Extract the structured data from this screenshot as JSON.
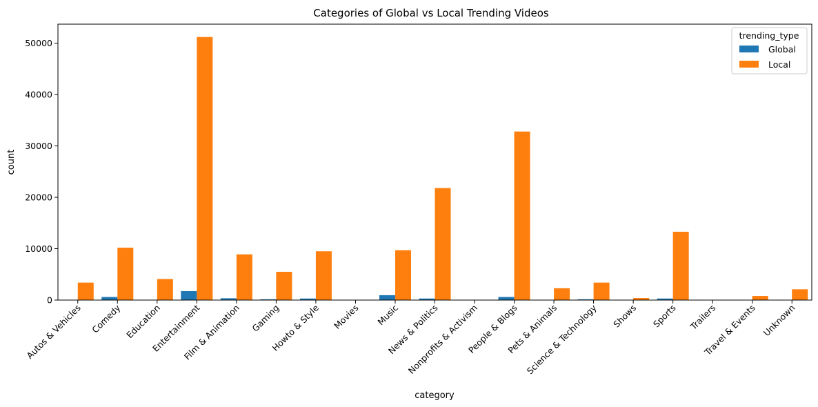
{
  "chart_data": {
    "type": "bar",
    "title": "Categories of Global vs Local Trending Videos",
    "xlabel": "category",
    "ylabel": "count",
    "ylim": [
      0,
      53700
    ],
    "yticks": [
      0,
      10000,
      20000,
      30000,
      40000,
      50000
    ],
    "grid": false,
    "legend": {
      "title": "trending_type",
      "placement": "top-right"
    },
    "categories": [
      "Autos & Vehicles",
      "Comedy",
      "Education",
      "Entertainment",
      "Film & Animation",
      "Gaming",
      "Howto & Style",
      "Movies",
      "Music",
      "News & Politics",
      "Nonprofits & Activism",
      "People & Blogs",
      "Pets & Animals",
      "Science & Technology",
      "Shows",
      "Sports",
      "Trailers",
      "Travel & Events",
      "Unknown"
    ],
    "series": [
      {
        "name": "Global",
        "color": "#1f77b4",
        "values": [
          0,
          600,
          0,
          1750,
          350,
          150,
          300,
          0,
          950,
          300,
          0,
          600,
          0,
          150,
          0,
          300,
          0,
          0,
          0
        ]
      },
      {
        "name": "Local",
        "color": "#ff7f0e",
        "values": [
          3400,
          10200,
          4100,
          51200,
          8900,
          5500,
          9500,
          50,
          9700,
          21800,
          50,
          32800,
          2300,
          3400,
          400,
          13300,
          30,
          800,
          2100
        ]
      }
    ]
  }
}
